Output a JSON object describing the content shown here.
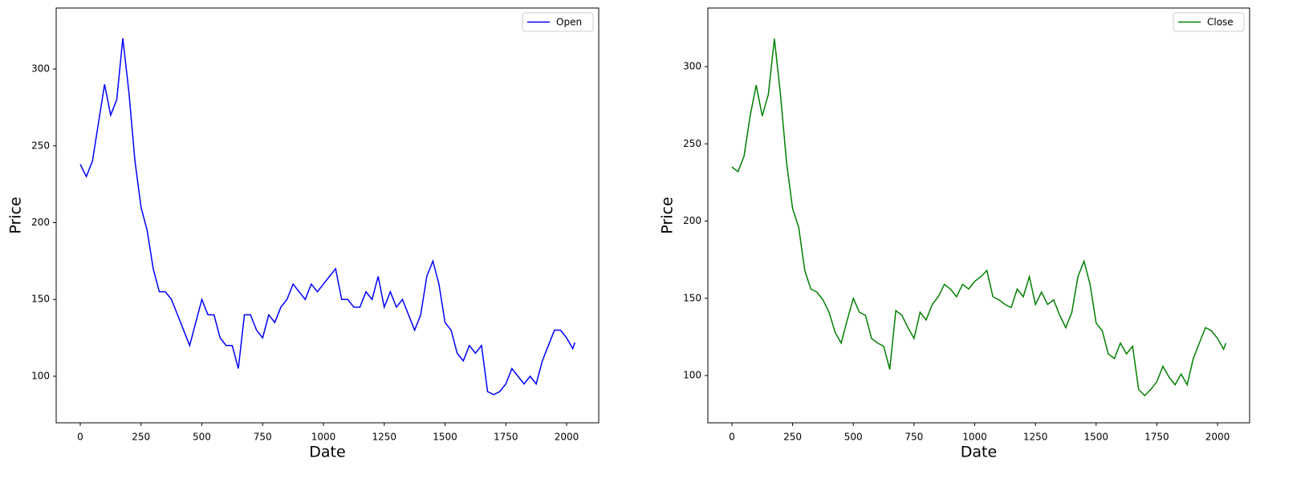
{
  "chart_data": [
    {
      "type": "line",
      "xlabel": "Date",
      "ylabel": "Price",
      "legend": "upper right",
      "x": [
        0,
        25,
        50,
        75,
        100,
        125,
        150,
        175,
        200,
        225,
        250,
        275,
        300,
        325,
        350,
        375,
        400,
        425,
        450,
        475,
        500,
        525,
        550,
        575,
        600,
        625,
        650,
        675,
        700,
        725,
        750,
        775,
        800,
        825,
        850,
        875,
        900,
        925,
        950,
        975,
        1000,
        1025,
        1050,
        1075,
        1100,
        1125,
        1150,
        1175,
        1200,
        1225,
        1250,
        1275,
        1300,
        1325,
        1350,
        1375,
        1400,
        1425,
        1450,
        1475,
        1500,
        1525,
        1550,
        1575,
        1600,
        1625,
        1650,
        1675,
        1700,
        1725,
        1750,
        1775,
        1800,
        1825,
        1850,
        1875,
        1900,
        1925,
        1950,
        1975,
        2000,
        2025,
        2034
      ],
      "series": [
        {
          "name": "Open",
          "color": "#0000ff",
          "values": [
            238,
            230,
            240,
            265,
            290,
            270,
            280,
            320,
            285,
            240,
            210,
            195,
            170,
            155,
            155,
            150,
            140,
            130,
            120,
            135,
            150,
            140,
            140,
            125,
            120,
            120,
            105,
            140,
            140,
            130,
            125,
            140,
            135,
            145,
            150,
            160,
            155,
            150,
            160,
            155,
            160,
            165,
            170,
            150,
            150,
            145,
            145,
            155,
            150,
            165,
            145,
            155,
            145,
            150,
            140,
            130,
            140,
            165,
            175,
            160,
            135,
            130,
            115,
            110,
            120,
            115,
            120,
            90,
            88,
            90,
            95,
            105,
            100,
            95,
            100,
            95,
            110,
            120,
            130,
            130,
            125,
            118,
            122
          ]
        }
      ],
      "xlim": [
        -99,
        2132
      ],
      "ylim": [
        69.7,
        339.7
      ],
      "xticks": [
        0,
        250,
        500,
        750,
        1000,
        1250,
        1500,
        1750,
        2000
      ],
      "yticks": [
        100,
        150,
        200,
        250,
        300
      ]
    },
    {
      "type": "line",
      "xlabel": "Date",
      "ylabel": "Price",
      "legend": "upper right",
      "x": [
        0,
        25,
        50,
        75,
        100,
        125,
        150,
        175,
        200,
        225,
        250,
        275,
        300,
        325,
        350,
        375,
        400,
        425,
        450,
        475,
        500,
        525,
        550,
        575,
        600,
        625,
        650,
        675,
        700,
        725,
        750,
        775,
        800,
        825,
        850,
        875,
        900,
        925,
        950,
        975,
        1000,
        1025,
        1050,
        1075,
        1100,
        1125,
        1150,
        1175,
        1200,
        1225,
        1250,
        1275,
        1300,
        1325,
        1350,
        1375,
        1400,
        1425,
        1450,
        1475,
        1500,
        1525,
        1550,
        1575,
        1600,
        1625,
        1650,
        1675,
        1700,
        1725,
        1750,
        1775,
        1800,
        1825,
        1850,
        1875,
        1900,
        1925,
        1950,
        1975,
        2000,
        2025,
        2034
      ],
      "series": [
        {
          "name": "Close",
          "color": "#008000",
          "values": [
            235,
            232,
            242,
            268,
            288,
            268,
            282,
            318,
            282,
            238,
            208,
            196,
            168,
            156,
            154,
            149,
            141,
            128,
            121,
            136,
            150,
            141,
            139,
            124,
            121,
            119,
            104,
            142,
            139,
            131,
            124,
            141,
            136,
            146,
            151,
            159,
            156,
            151,
            159,
            156,
            161,
            164,
            168,
            151,
            149,
            146,
            144,
            156,
            151,
            164,
            146,
            154,
            146,
            149,
            139,
            131,
            141,
            164,
            174,
            159,
            134,
            129,
            114,
            111,
            121,
            114,
            119,
            91,
            87,
            91,
            96,
            106,
            99,
            94,
            101,
            94,
            111,
            121,
            131,
            129,
            124,
            117,
            121
          ]
        }
      ],
      "xlim": [
        -99,
        2132
      ],
      "ylim": [
        69.4,
        337.9
      ],
      "xticks": [
        0,
        250,
        500,
        750,
        1000,
        1250,
        1500,
        1750,
        2000
      ],
      "yticks": [
        100,
        150,
        200,
        250,
        300
      ]
    }
  ]
}
